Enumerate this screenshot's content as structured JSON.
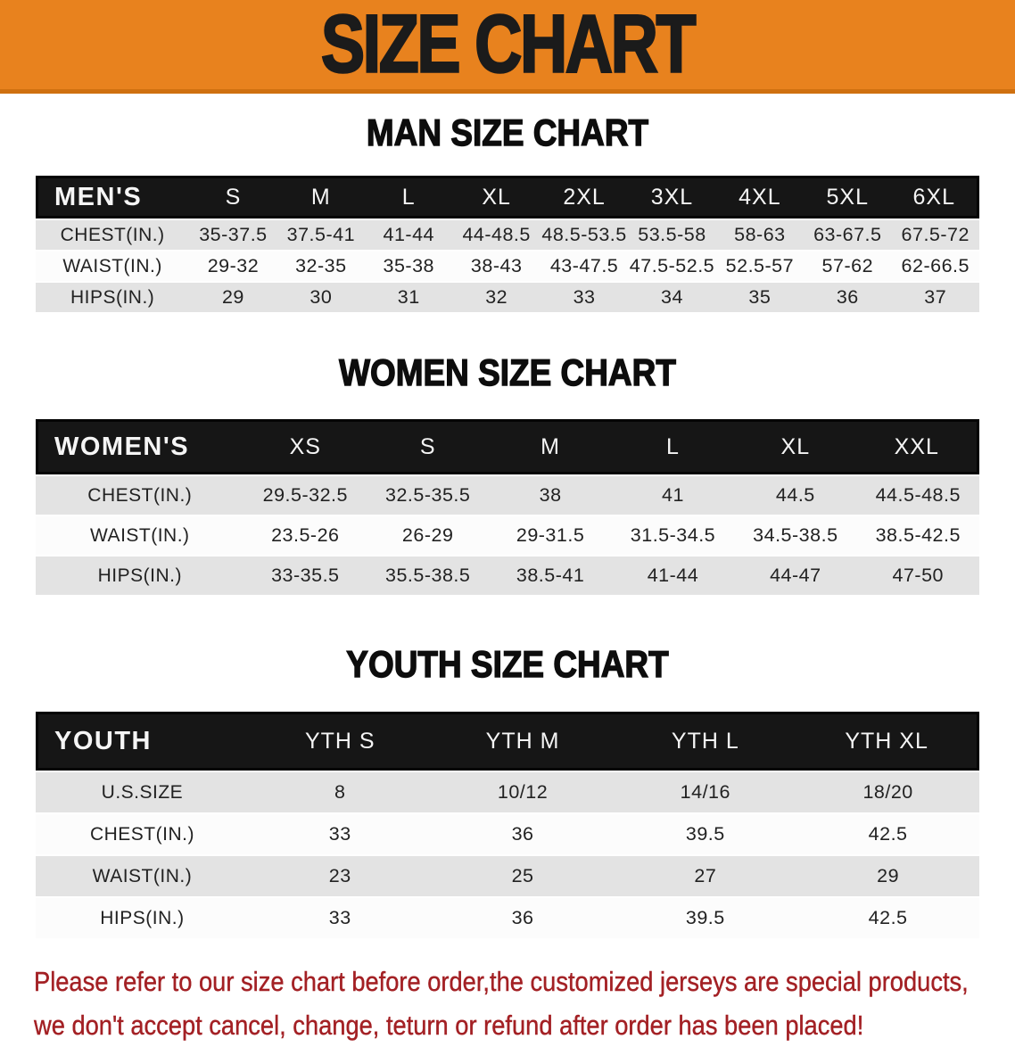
{
  "banner": {
    "title": "SIZE CHART"
  },
  "colors": {
    "banner-bg": "#E8821E",
    "banner-edge": "#CF7010",
    "header-bar": "#161616",
    "row-gray": "#E3E3E3",
    "row-white": "#FCFCFC",
    "notice-red": "#A32024",
    "text-dark": "#222222"
  },
  "sections": {
    "men": {
      "title": "MAN SIZE CHART",
      "table": {
        "corner": "MEN'S",
        "columns": [
          "S",
          "M",
          "L",
          "XL",
          "2XL",
          "3XL",
          "4XL",
          "5XL",
          "6XL"
        ],
        "rows": [
          {
            "label": "CHEST(IN.)",
            "values": [
              "35-37.5",
              "37.5-41",
              "41-44",
              "44-48.5",
              "48.5-53.5",
              "53.5-58",
              "58-63",
              "63-67.5",
              "67.5-72"
            ]
          },
          {
            "label": "WAIST(IN.)",
            "values": [
              "29-32",
              "32-35",
              "35-38",
              "38-43",
              "43-47.5",
              "47.5-52.5",
              "52.5-57",
              "57-62",
              "62-66.5"
            ]
          },
          {
            "label": "HIPS(IN.)",
            "values": [
              "29",
              "30",
              "31",
              "32",
              "33",
              "34",
              "35",
              "36",
              "37"
            ]
          }
        ]
      }
    },
    "women": {
      "title": "WOMEN SIZE CHART",
      "table": {
        "corner": "WOMEN'S",
        "columns": [
          "XS",
          "S",
          "M",
          "L",
          "XL",
          "XXL"
        ],
        "rows": [
          {
            "label": "CHEST(IN.)",
            "values": [
              "29.5-32.5",
              "32.5-35.5",
              "38",
              "41",
              "44.5",
              "44.5-48.5"
            ]
          },
          {
            "label": "WAIST(IN.)",
            "values": [
              "23.5-26",
              "26-29",
              "29-31.5",
              "31.5-34.5",
              "34.5-38.5",
              "38.5-42.5"
            ]
          },
          {
            "label": "HIPS(IN.)",
            "values": [
              "33-35.5",
              "35.5-38.5",
              "38.5-41",
              "41-44",
              "44-47",
              "47-50"
            ]
          }
        ]
      }
    },
    "youth": {
      "title": "YOUTH SIZE CHART",
      "table": {
        "corner": "YOUTH",
        "columns": [
          "YTH S",
          "YTH M",
          "YTH L",
          "YTH XL"
        ],
        "rows": [
          {
            "label": "U.S.SIZE",
            "values": [
              "8",
              "10/12",
              "14/16",
              "18/20"
            ]
          },
          {
            "label": "CHEST(IN.)",
            "values": [
              "33",
              "36",
              "39.5",
              "42.5"
            ]
          },
          {
            "label": "WAIST(IN.)",
            "values": [
              "23",
              "25",
              "27",
              "29"
            ]
          },
          {
            "label": "HIPS(IN.)",
            "values": [
              "33",
              "36",
              "39.5",
              "42.5"
            ]
          }
        ]
      }
    }
  },
  "notice": {
    "line1": "Please refer to our size chart before order,the customized jerseys are special products,",
    "line2": "we don't accept cancel, change, teturn or refund after order has been placed!"
  }
}
